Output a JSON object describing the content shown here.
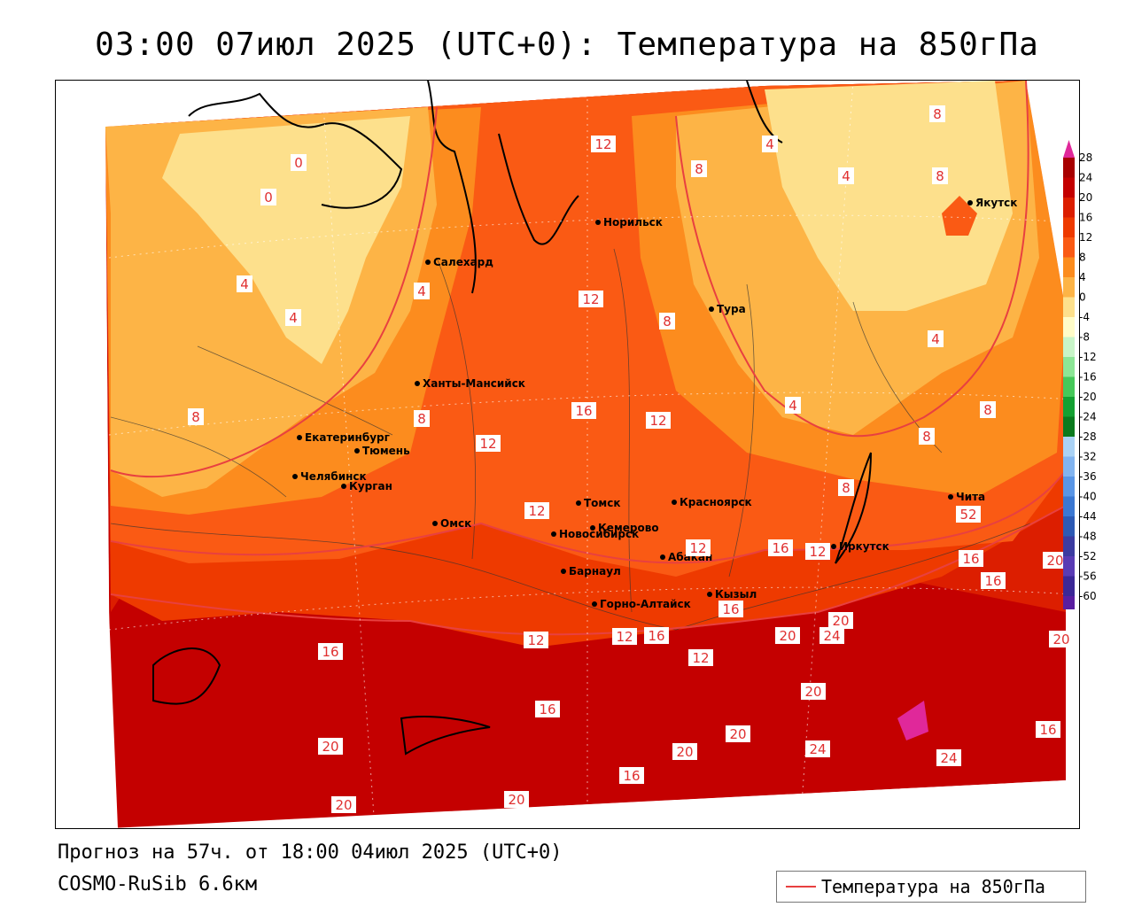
{
  "title": "03:00 07июл 2025 (UTC+0): Температура на 850гПа",
  "footer": {
    "forecast": "Прогноз на 57ч. от 18:00 04июл 2025 (UTC+0)",
    "model": "COSMO-RuSib 6.6км"
  },
  "legend": {
    "label": "Температура на 850гПа",
    "color": "#e84040"
  },
  "colorbar": {
    "levels": [
      28,
      24,
      20,
      16,
      12,
      8,
      4,
      0,
      -4,
      -8,
      -12,
      -16,
      -20,
      -24,
      -28,
      -32,
      -36,
      -40,
      -44,
      -48,
      -52,
      -56,
      -60
    ],
    "colors": [
      "#a80000",
      "#c40000",
      "#dc1e00",
      "#ee3a00",
      "#fa5a14",
      "#fc8c1e",
      "#fdb446",
      "#fde08c",
      "#fffcc8",
      "#c8f5c8",
      "#8ce696",
      "#46c85a",
      "#14a032",
      "#0a7a1e",
      "#aad2f5",
      "#82b4f0",
      "#5a96e6",
      "#3c78d2",
      "#2d5ab4",
      "#3c3ca0",
      "#5a3cb4",
      "#3c2896",
      "#5a1ea0",
      "#7814b4"
    ],
    "top_arrow_color": "#e0289a",
    "bottom_arrow_color": "#8c28c8"
  },
  "cities": [
    {
      "name": "Норильск"
    },
    {
      "name": "Якутск"
    },
    {
      "name": "Салехард"
    },
    {
      "name": "Тура"
    },
    {
      "name": "Ханты-Мансийск"
    },
    {
      "name": "Екатеринбург"
    },
    {
      "name": "Тюмень"
    },
    {
      "name": "Челябинск"
    },
    {
      "name": "Курган"
    },
    {
      "name": "Томск"
    },
    {
      "name": "Красноярск"
    },
    {
      "name": "Омск"
    },
    {
      "name": "Новосибирск"
    },
    {
      "name": "Кемерово"
    },
    {
      "name": "Абакан"
    },
    {
      "name": "Иркутск"
    },
    {
      "name": "Чита"
    },
    {
      "name": "Барнаул"
    },
    {
      "name": "Кызыл"
    },
    {
      "name": "Горно-Алтайск"
    }
  ],
  "contour_labels": [
    "8",
    "12",
    "8",
    "4",
    "4",
    "8",
    "0",
    "0",
    "4",
    "4",
    "4",
    "12",
    "8",
    "8",
    "16",
    "12",
    "12",
    "4",
    "4",
    "8",
    "8",
    "8",
    "12",
    "12",
    "16",
    "12",
    "16",
    "12",
    "8",
    "52",
    "16",
    "20",
    "12",
    "12",
    "16",
    "16",
    "20",
    "20",
    "24",
    "20",
    "16",
    "20",
    "20",
    "24",
    "16",
    "20",
    "20",
    "24",
    "16",
    "20",
    "20",
    "16"
  ]
}
